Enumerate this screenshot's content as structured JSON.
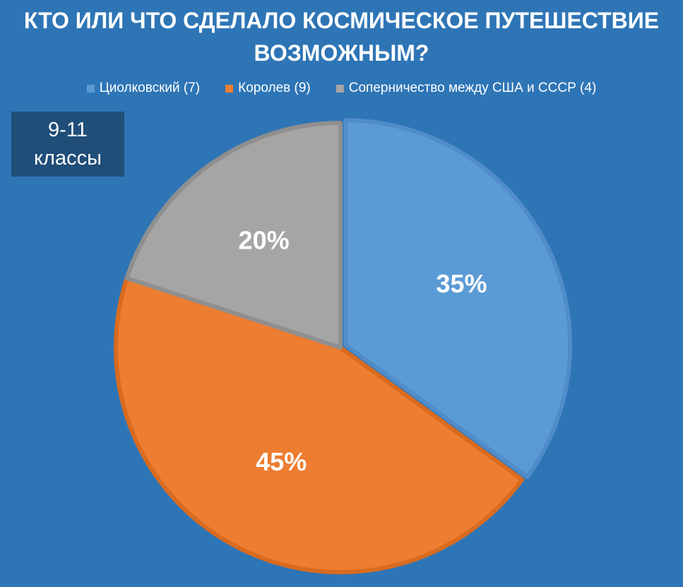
{
  "title_line1": "КТО ИЛИ ЧТО СДЕЛАЛО КОСМИЧЕСКОЕ ПУТЕШЕСТВИЕ",
  "title_line2": "ВОЗМОЖНЫМ?",
  "badge": {
    "line1": "9-11",
    "line2": "классы"
  },
  "colors": {
    "background": "#2e75b6",
    "badge": "#1f4e79"
  },
  "chart_data": {
    "type": "pie",
    "title": "КТО ИЛИ ЧТО СДЕЛАЛО КОСМИЧЕСКОЕ ПУТЕШЕСТВИЕ ВОЗМОЖНЫМ?",
    "legend_position": "top",
    "slices": [
      {
        "legend": "Циолковский (7)",
        "value": 7,
        "percent_label": "35%",
        "color": "#5b9bd5",
        "edge": "#4f8cc9"
      },
      {
        "legend": "Королев (9)",
        "value": 9,
        "percent_label": "45%",
        "color": "#ed7d31",
        "edge": "#d96b1f"
      },
      {
        "legend": "Соперничество между США и СССР (4)",
        "value": 4,
        "percent_label": "20%",
        "color": "#a5a5a5",
        "edge": "#8f8f8f"
      }
    ]
  }
}
